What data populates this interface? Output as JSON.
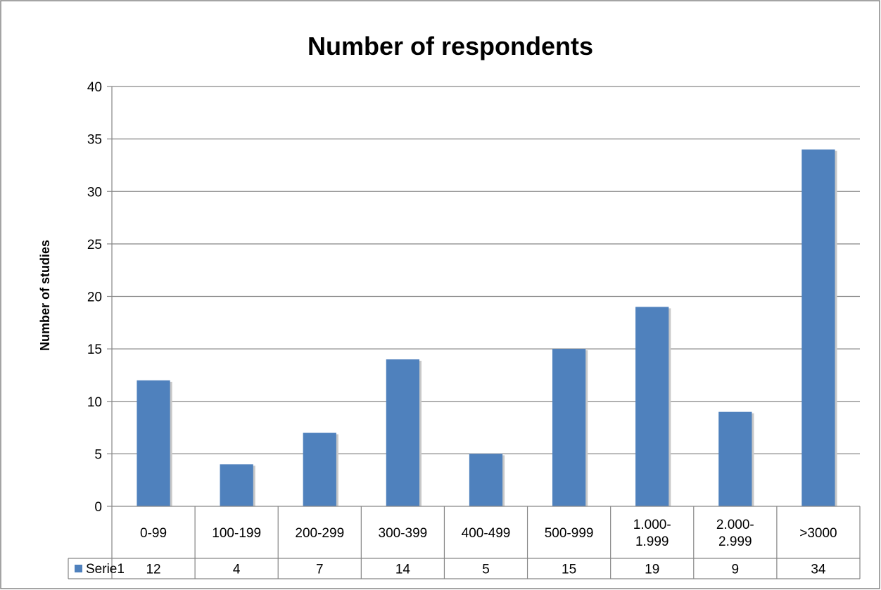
{
  "chart_data": {
    "type": "bar",
    "title": "Number of respondents",
    "xlabel": "",
    "ylabel": "Number of studies",
    "ylim": [
      0,
      40
    ],
    "yticks": [
      0,
      5,
      10,
      15,
      20,
      25,
      30,
      35,
      40
    ],
    "grid": true,
    "legend": "data-table",
    "categories": [
      [
        "0-99"
      ],
      [
        "100-199"
      ],
      [
        "200-299"
      ],
      [
        "300-399"
      ],
      [
        "400-499"
      ],
      [
        "500-999"
      ],
      [
        "1.000-",
        "1.999"
      ],
      [
        "2.000-",
        "2.999"
      ],
      [
        ">3000"
      ]
    ],
    "series": [
      {
        "name": "Serie1",
        "color": "#4f81bd",
        "values": [
          12,
          4,
          7,
          14,
          5,
          15,
          19,
          9,
          34
        ]
      }
    ]
  }
}
